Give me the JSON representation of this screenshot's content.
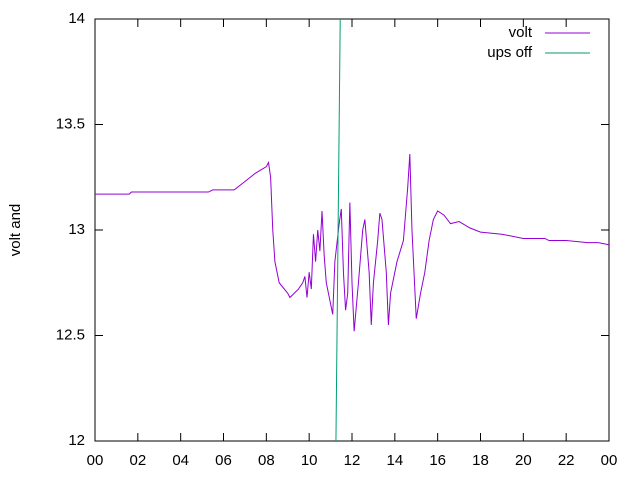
{
  "chart_data": {
    "type": "line",
    "ylabel": "volt and",
    "xlim": [
      0,
      24
    ],
    "xticks": [
      {
        "value": 0,
        "label": "00"
      },
      {
        "value": 2,
        "label": "02"
      },
      {
        "value": 4,
        "label": "04"
      },
      {
        "value": 6,
        "label": "06"
      },
      {
        "value": 8,
        "label": "08"
      },
      10,
      12,
      14,
      16,
      18,
      20,
      22,
      {
        "value": 24,
        "label": "00"
      }
    ],
    "ylim": [
      12,
      14
    ],
    "yticks": [
      12,
      12.5,
      13,
      13.5,
      14
    ],
    "legend": "upper right",
    "series": [
      {
        "name": "volt",
        "color": "#9400d3",
        "x": [
          0,
          1.6,
          1.7,
          5.3,
          5.5,
          6.5,
          7,
          7.5,
          8,
          8.1,
          8.2,
          8.3,
          8.4,
          8.6,
          9,
          9.1,
          9.5,
          9.7,
          9.8,
          9.9,
          10,
          10.1,
          10.2,
          10.3,
          10.4,
          10.5,
          10.6,
          10.7,
          10.8,
          10.9,
          11,
          11.1,
          11.2,
          11.4,
          11.5,
          11.6,
          11.7,
          11.8,
          11.9,
          12,
          12.1,
          12.3,
          12.5,
          12.6,
          12.8,
          12.9,
          13,
          13.2,
          13.3,
          13.4,
          13.6,
          13.7,
          13.8,
          14.1,
          14.4,
          14.6,
          14.7,
          14.8,
          15,
          15.2,
          15.4,
          15.6,
          15.8,
          16,
          16.3,
          16.6,
          17,
          17.5,
          18,
          19,
          20,
          21,
          21.2,
          22,
          23,
          23.5,
          24
        ],
        "values": [
          13.17,
          13.17,
          13.18,
          13.18,
          13.19,
          13.19,
          13.23,
          13.27,
          13.3,
          13.32,
          13.25,
          13.0,
          12.85,
          12.75,
          12.7,
          12.68,
          12.72,
          12.75,
          12.78,
          12.68,
          12.8,
          12.72,
          12.98,
          12.85,
          13.0,
          12.9,
          13.09,
          12.88,
          12.75,
          12.7,
          12.65,
          12.6,
          12.85,
          13.03,
          13.1,
          12.8,
          12.62,
          12.7,
          13.13,
          12.75,
          12.52,
          12.75,
          13.0,
          13.05,
          12.8,
          12.55,
          12.75,
          12.95,
          13.08,
          13.05,
          12.8,
          12.55,
          12.7,
          12.85,
          12.95,
          13.2,
          13.36,
          13.0,
          12.58,
          12.7,
          12.8,
          12.95,
          13.05,
          13.09,
          13.07,
          13.03,
          13.04,
          13.01,
          12.99,
          12.98,
          12.96,
          12.96,
          12.95,
          12.95,
          12.94,
          12.94,
          12.93
        ]
      },
      {
        "name": "ups off",
        "color": "#009e73",
        "x": [
          11.25,
          11.3,
          11.4,
          11.45
        ],
        "values": [
          12,
          12.5,
          13.5,
          14
        ]
      }
    ]
  }
}
